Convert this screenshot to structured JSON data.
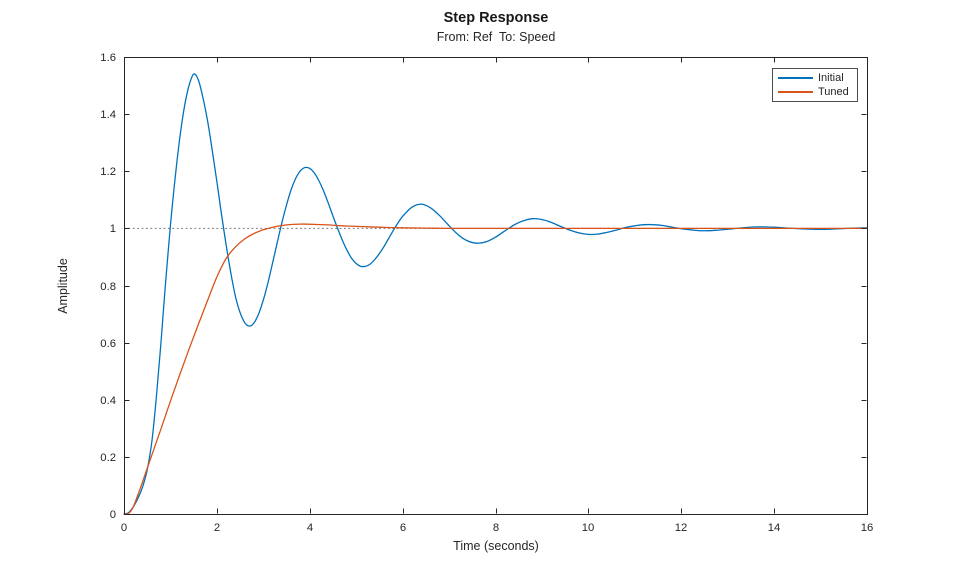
{
  "figure": {
    "title": "Step Response",
    "subtitle": "From: Ref  To: Speed",
    "xlabel": "Time (seconds)",
    "ylabel": "Amplitude",
    "background_color": "#ffffff",
    "axis_color": "#262626"
  },
  "legend": {
    "items": [
      {
        "label": "Initial",
        "color": "#0072BD"
      },
      {
        "label": "Tuned",
        "color": "#D95319"
      }
    ]
  },
  "chart_data": {
    "type": "line",
    "title": "Step Response",
    "subtitle": "From: Ref  To: Speed",
    "xlabel": "Time (seconds)",
    "ylabel": "Amplitude",
    "xlim": [
      0,
      16
    ],
    "ylim": [
      0,
      1.6
    ],
    "x_ticks": [
      0,
      2,
      4,
      6,
      8,
      10,
      12,
      14,
      16
    ],
    "y_ticks": [
      0,
      0.2,
      0.4,
      0.6,
      0.8,
      1,
      1.2,
      1.4,
      1.6
    ],
    "grid": false,
    "legend_position": "northeast",
    "reference_line": {
      "y": 1,
      "style": "dotted",
      "color": "#757575"
    },
    "series": [
      {
        "name": "Initial",
        "color": "#0072BD",
        "x": [
          0,
          0.1,
          0.2,
          0.3,
          0.4,
          0.5,
          0.6,
          0.7,
          0.8,
          0.9,
          1.0,
          1.1,
          1.2,
          1.3,
          1.4,
          1.5,
          1.6,
          1.7,
          1.8,
          1.9,
          2.0,
          2.1,
          2.2,
          2.3,
          2.4,
          2.5,
          2.6,
          2.7,
          2.8,
          2.9,
          3.0,
          3.1,
          3.2,
          3.3,
          3.4,
          3.5,
          3.6,
          3.7,
          3.8,
          3.9,
          4.0,
          4.1,
          4.2,
          4.3,
          4.4,
          4.5,
          4.6,
          4.7,
          4.8,
          4.9,
          5.0,
          5.1,
          5.2,
          5.3,
          5.4,
          5.5,
          5.6,
          5.7,
          5.8,
          5.9,
          6.0,
          6.2,
          6.4,
          6.6,
          6.8,
          7.0,
          7.2,
          7.4,
          7.6,
          7.8,
          8.0,
          8.2,
          8.4,
          8.6,
          8.8,
          9.0,
          9.2,
          9.4,
          9.6,
          9.8,
          10.0,
          10.2,
          10.4,
          10.6,
          10.8,
          11.0,
          11.2,
          11.4,
          11.6,
          11.8,
          12.0,
          12.2,
          12.4,
          12.6,
          12.8,
          13.0,
          13.2,
          13.4,
          13.6,
          13.8,
          14.0,
          14.4,
          14.8,
          15.2,
          15.6,
          16.0
        ],
        "y": [
          0,
          0.005,
          0.025,
          0.055,
          0.095,
          0.155,
          0.255,
          0.415,
          0.61,
          0.82,
          1.01,
          1.175,
          1.315,
          1.425,
          1.5,
          1.54,
          1.52,
          1.458,
          1.376,
          1.274,
          1.163,
          1.049,
          0.941,
          0.844,
          0.762,
          0.705,
          0.67,
          0.658,
          0.669,
          0.701,
          0.749,
          0.81,
          0.879,
          0.95,
          1.02,
          1.082,
          1.136,
          1.176,
          1.202,
          1.213,
          1.21,
          1.194,
          1.166,
          1.13,
          1.088,
          1.043,
          1.0,
          0.959,
          0.924,
          0.896,
          0.877,
          0.867,
          0.867,
          0.875,
          0.891,
          0.912,
          0.937,
          0.965,
          0.993,
          1.019,
          1.042,
          1.074,
          1.085,
          1.072,
          1.044,
          1.009,
          0.977,
          0.956,
          0.948,
          0.953,
          0.969,
          0.991,
          1.012,
          1.027,
          1.034,
          1.031,
          1.021,
          1.007,
          0.994,
          0.984,
          0.979,
          0.98,
          0.986,
          0.994,
          1.003,
          1.009,
          1.013,
          1.013,
          1.01,
          1.004,
          0.999,
          0.995,
          0.992,
          0.992,
          0.994,
          0.997,
          1.0,
          1.003,
          1.005,
          1.005,
          1.004,
          1.0,
          0.997,
          0.997,
          1.0,
          1.002
        ]
      },
      {
        "name": "Tuned",
        "color": "#D95319",
        "x": [
          0,
          0.1,
          0.2,
          0.35,
          0.5,
          0.65,
          0.8,
          1.0,
          1.2,
          1.4,
          1.6,
          1.8,
          2.0,
          2.2,
          2.4,
          2.6,
          2.8,
          3.0,
          3.2,
          3.5,
          3.8,
          4.1,
          4.4,
          4.7,
          5.0,
          5.5,
          6.0,
          6.5,
          7.0,
          8.0,
          9.0,
          10.0,
          11.0,
          12.0,
          13.0,
          14.0,
          15.0,
          16.0
        ],
        "y": [
          0,
          0.002,
          0.025,
          0.09,
          0.16,
          0.23,
          0.3,
          0.395,
          0.487,
          0.577,
          0.663,
          0.748,
          0.83,
          0.895,
          0.935,
          0.963,
          0.982,
          0.995,
          1.004,
          1.012,
          1.015,
          1.014,
          1.012,
          1.009,
          1.007,
          1.004,
          1.002,
          1.001,
          1.0,
          1.0,
          1.0,
          1.0,
          1.0,
          1.0,
          1.0,
          1.0,
          1.0,
          1.0
        ]
      }
    ]
  }
}
